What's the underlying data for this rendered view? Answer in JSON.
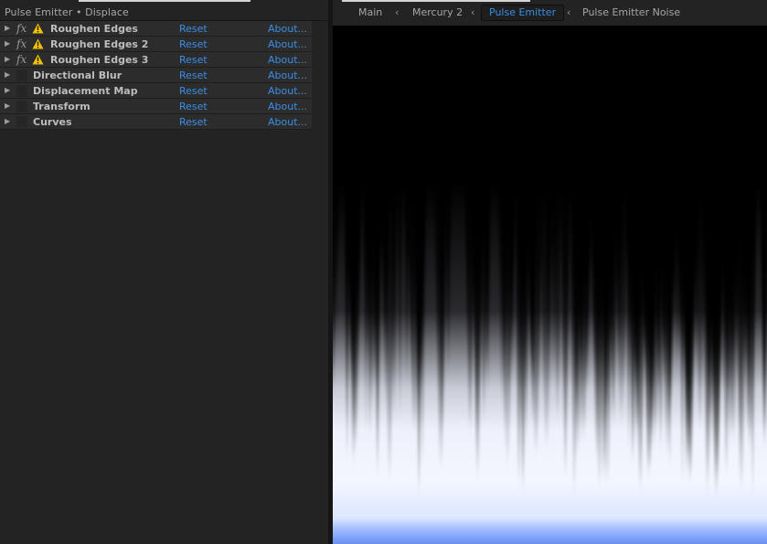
{
  "effect_controls": {
    "title": "Pulse Emitter • Displace",
    "effects": [
      {
        "name": "Roughen Edges",
        "fx_enabled": true,
        "warning": true,
        "reset": "Reset",
        "about": "About..."
      },
      {
        "name": "Roughen Edges 2",
        "fx_enabled": true,
        "warning": true,
        "reset": "Reset",
        "about": "About..."
      },
      {
        "name": "Roughen Edges 3",
        "fx_enabled": true,
        "warning": true,
        "reset": "Reset",
        "about": "About..."
      },
      {
        "name": "Directional Blur",
        "fx_enabled": false,
        "warning": false,
        "reset": "Reset",
        "about": "About..."
      },
      {
        "name": "Displacement Map",
        "fx_enabled": false,
        "warning": false,
        "reset": "Reset",
        "about": "About..."
      },
      {
        "name": "Transform",
        "fx_enabled": false,
        "warning": false,
        "reset": "Reset",
        "about": "About..."
      },
      {
        "name": "Curves",
        "fx_enabled": false,
        "warning": false,
        "reset": "Reset",
        "about": "About..."
      }
    ]
  },
  "comp_viewer": {
    "breadcrumbs": [
      "Main",
      "Mercury 2",
      "Pulse Emitter",
      "Pulse Emitter Noise"
    ],
    "active_breadcrumb": "Pulse Emitter"
  },
  "colors": {
    "link": "#3b8ee6",
    "warning": "#f2c200",
    "panel_bg": "#232323",
    "row_bg": "#2c2c2c",
    "viewer_bottom_glow": "#3f7dff"
  },
  "icons": {
    "twirl": "triangle-right-icon",
    "fx": "fx-icon",
    "warning": "warning-triangle-icon",
    "breadcrumb_separator": "chevron-left-icon"
  }
}
